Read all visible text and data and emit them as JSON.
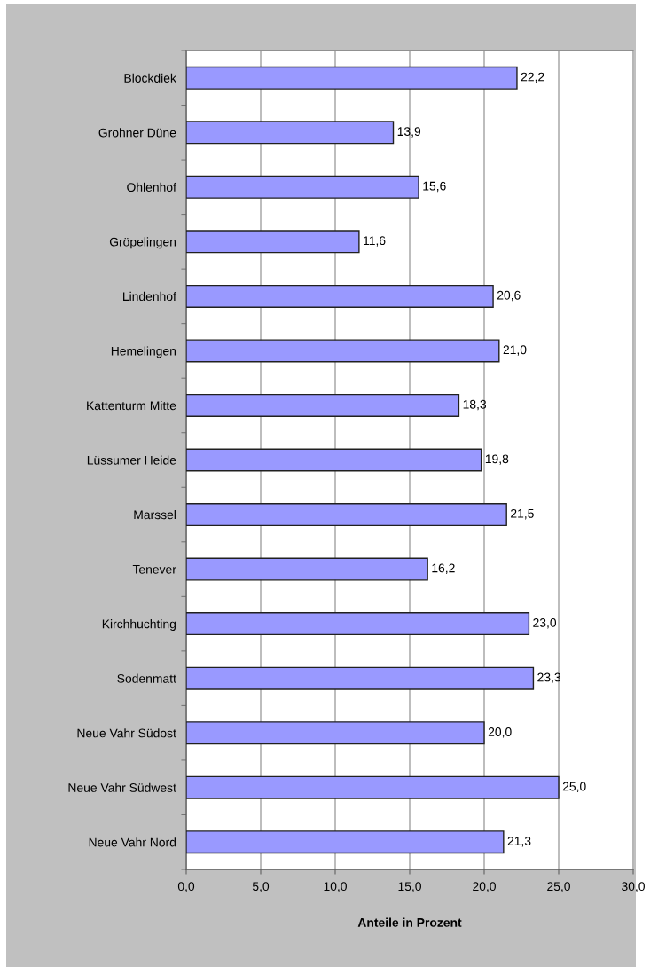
{
  "chart_data": {
    "type": "bar",
    "orientation": "horizontal",
    "categories": [
      "Blockdiek",
      "Grohner Düne",
      "Ohlenhof",
      "Gröpelingen",
      "Lindenhof",
      "Hemelingen",
      "Kattenturm Mitte",
      "Lüssumer Heide",
      "Marssel",
      "Tenever",
      "Kirchhuchting",
      "Sodenmatt",
      "Neue Vahr Südost",
      "Neue Vahr Südwest",
      "Neue Vahr Nord"
    ],
    "values": [
      22.2,
      13.9,
      15.6,
      11.6,
      20.6,
      21.0,
      18.3,
      19.8,
      21.5,
      16.2,
      23.0,
      23.3,
      20.0,
      25.0,
      21.3
    ],
    "value_labels": [
      "22,2",
      "13,9",
      "15,6",
      "11,6",
      "20,6",
      "21,0",
      "18,3",
      "19,8",
      "21,5",
      "16,2",
      "23,0",
      "23,3",
      "20,0",
      "25,0",
      "21,3"
    ],
    "color": "#9999ff",
    "xlabel": "Anteile in Prozent",
    "xlim": [
      0,
      30
    ],
    "xticks": [
      {
        "value": 0,
        "label": "0,0"
      },
      {
        "value": 5,
        "label": "5,0"
      },
      {
        "value": 10,
        "label": "10,0"
      },
      {
        "value": 15,
        "label": "15,0"
      },
      {
        "value": 20,
        "label": "20,0"
      },
      {
        "value": 25,
        "label": "25,0"
      },
      {
        "value": 30,
        "label": "30,0"
      }
    ],
    "grid": "x",
    "legend": false
  }
}
